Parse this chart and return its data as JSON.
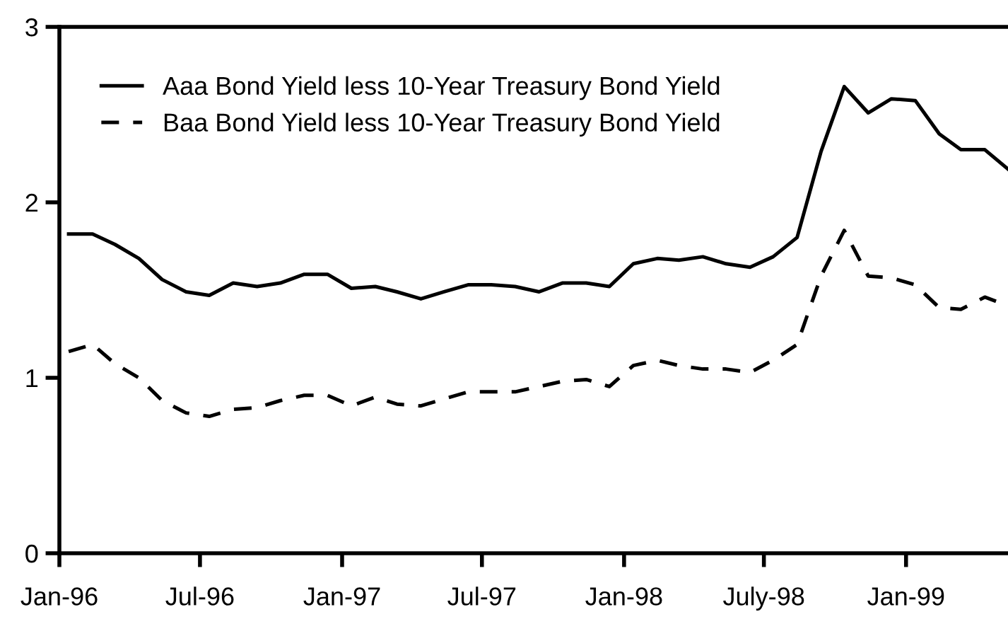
{
  "chart_data": {
    "type": "line",
    "x": [
      "1996-01-13",
      "1996-02-13",
      "1996-03-13",
      "1996-04-13",
      "1996-05-13",
      "1996-06-13",
      "1996-07-13",
      "1996-08-13",
      "1996-09-13",
      "1996-10-13",
      "1996-11-13",
      "1996-12-13",
      "1997-01-13",
      "1997-02-13",
      "1997-03-13",
      "1997-04-13",
      "1997-05-13",
      "1997-06-13",
      "1997-07-13",
      "1997-08-13",
      "1997-09-13",
      "1997-10-13",
      "1997-11-13",
      "1997-12-13",
      "1998-01-13",
      "1998-02-13",
      "1998-03-13",
      "1998-04-13",
      "1998-05-13",
      "1998-06-13",
      "1998-07-13",
      "1998-08-13",
      "1998-09-13",
      "1998-10-13",
      "1998-11-13",
      "1998-12-13",
      "1999-01-13",
      "1999-02-13",
      "1999-03-13",
      "1999-04-13",
      "1999-05-13"
    ],
    "series": [
      {
        "name": "Aaa Bond Yield less 10-Year Treasury Bond Yield",
        "color": "#000000",
        "line_style": "solid",
        "values": [
          1.82,
          1.82,
          1.76,
          1.68,
          1.56,
          1.49,
          1.47,
          1.54,
          1.52,
          1.54,
          1.59,
          1.59,
          1.51,
          1.52,
          1.49,
          1.45,
          1.49,
          1.53,
          1.53,
          1.52,
          1.49,
          1.54,
          1.54,
          1.52,
          1.65,
          1.68,
          1.67,
          1.69,
          1.65,
          1.63,
          1.69,
          1.8,
          2.29,
          2.66,
          2.51,
          2.59,
          2.58,
          2.39,
          2.3,
          2.3,
          2.19
        ]
      },
      {
        "name": "Baa Bond Yield less 10-Year Treasury Bond Yield",
        "color": "#000000",
        "line_style": "dashed",
        "values": [
          1.15,
          1.19,
          1.08,
          1.0,
          0.87,
          0.8,
          0.78,
          0.82,
          0.83,
          0.87,
          0.9,
          0.9,
          0.84,
          0.89,
          0.85,
          0.84,
          0.88,
          0.92,
          0.92,
          0.92,
          0.95,
          0.98,
          0.99,
          0.95,
          1.07,
          1.1,
          1.07,
          1.05,
          1.05,
          1.03,
          1.1,
          1.19,
          1.58,
          1.84,
          1.58,
          1.57,
          1.53,
          1.4,
          1.39,
          1.46,
          1.41
        ]
      }
    ],
    "xlim": [
      "1996-01-01",
      "1999-05-13"
    ],
    "xticks": [
      {
        "value": "1996-01-01",
        "label": "Jan-96"
      },
      {
        "value": "1996-07-01",
        "label": "Jul-96"
      },
      {
        "value": "1997-01-01",
        "label": "Jan-97"
      },
      {
        "value": "1997-07-01",
        "label": "Jul-97"
      },
      {
        "value": "1998-01-01",
        "label": "Jan-98"
      },
      {
        "value": "1998-07-01",
        "label": "July-98"
      },
      {
        "value": "1999-01-01",
        "label": "Jan-99"
      }
    ],
    "ylim": [
      0,
      3
    ],
    "yticks": [
      0,
      1,
      2,
      3
    ],
    "grid": false,
    "legend": "top left",
    "marker": "none"
  }
}
